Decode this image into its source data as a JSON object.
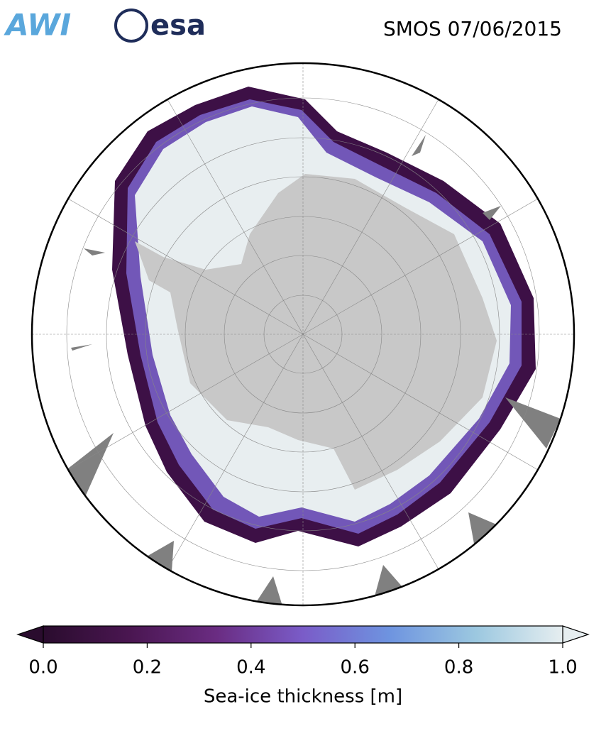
{
  "header": {
    "logos": [
      "AWI",
      "esa"
    ],
    "title": "SMOS 07/06/2015"
  },
  "colorbar": {
    "label": "Sea-ice thickness [m]",
    "lim": [
      0,
      1
    ],
    "ticks": [
      {
        "value": 0,
        "label": "0.0"
      },
      0.2,
      0.4,
      0.6,
      0.8,
      {
        "value": 1,
        "label": "1.0"
      }
    ],
    "colors": [
      "#2a0c2e",
      "#4a1651",
      "#6a2c82",
      "#7a5cc8",
      "#6e94e0",
      "#9cc8e0",
      "#e6eef0"
    ],
    "extend": "both"
  }
}
